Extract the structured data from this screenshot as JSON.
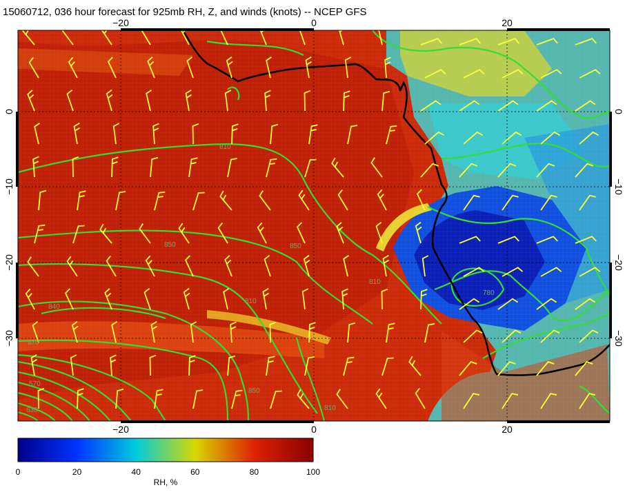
{
  "title": "15060712, 036 hour forecast for 925mb RH, Z, and winds (knots) -- NCEP GFS",
  "axes": {
    "top_lon": [
      {
        "lon": -20,
        "label": "−20"
      },
      {
        "lon": 0,
        "label": "0"
      },
      {
        "lon": 20,
        "label": "20"
      }
    ],
    "bottom_lon": [
      {
        "lon": -20,
        "label": "−20"
      },
      {
        "lon": 0,
        "label": "0"
      },
      {
        "lon": 20,
        "label": "20"
      }
    ],
    "left_lat": [
      {
        "lat": 0,
        "label": "0"
      },
      {
        "lat": -10,
        "label": "−10"
      },
      {
        "lat": -20,
        "label": "−20"
      },
      {
        "lat": -30,
        "label": "−30"
      }
    ],
    "right_lat": [
      {
        "lat": 0,
        "label": "0"
      },
      {
        "lat": -10,
        "label": "−10"
      },
      {
        "lat": -20,
        "label": "−20"
      },
      {
        "lat": -30,
        "label": "−30"
      }
    ]
  },
  "contour_labels": [
    "810",
    "850",
    "850",
    "810",
    "840",
    "870",
    "780",
    "810",
    "850",
    "810",
    "570",
    "630"
  ],
  "colorbar": {
    "min": 0,
    "max": 100,
    "ticks": [
      "0",
      "20",
      "40",
      "60",
      "80",
      "100"
    ],
    "label": "RH, %",
    "colors": [
      "#00008a",
      "#0033ff",
      "#00ccdd",
      "#d8d800",
      "#dd2200",
      "#8a0000"
    ]
  },
  "colors": {
    "coastline": "#000000",
    "contours": "#33dd33",
    "barbs": "#ffff33"
  }
}
